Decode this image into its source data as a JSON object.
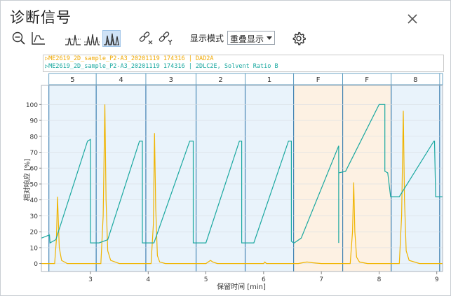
{
  "dialog": {
    "title": "诊断信号"
  },
  "toolbar": {
    "display_mode_label": "显示模式",
    "display_mode_value": "重叠显示"
  },
  "legend": {
    "entries": [
      {
        "text": "▷ME2619_2D_sample_P2-A3_20201119 174316 | DAD2A",
        "color": "#f0a800"
      },
      {
        "text": "▷ME2619_2D_sample_P2-A3_20201119 174316 | 2DLC2E, Solvent Ratio B",
        "color": "#1aa8a0"
      }
    ]
  },
  "chart_data": {
    "type": "line",
    "xlabel": "保留时间 [min]",
    "ylabel": "相对响应 [%]",
    "xlim": [
      2.15,
      9.1
    ],
    "ylim": [
      -5,
      112
    ],
    "x_ticks": [
      3,
      4,
      5,
      6,
      7,
      8,
      9
    ],
    "y_ticks": [
      0,
      10,
      20,
      30,
      40,
      50,
      60,
      70,
      80,
      90,
      100
    ],
    "fractions": [
      {
        "label": "5",
        "start": 2.28,
        "end": 3.1,
        "shade": "blue"
      },
      {
        "label": "4",
        "start": 3.1,
        "end": 3.96,
        "shade": "blue"
      },
      {
        "label": "3",
        "start": 3.96,
        "end": 4.83,
        "shade": "blue"
      },
      {
        "label": "2",
        "start": 4.83,
        "end": 5.68,
        "shade": "blue"
      },
      {
        "label": "1",
        "start": 5.68,
        "end": 6.52,
        "shade": "blue"
      },
      {
        "label": "F",
        "start": 6.52,
        "end": 7.37,
        "shade": "orange"
      },
      {
        "label": "F",
        "start": 7.37,
        "end": 8.21,
        "shade": "orange"
      },
      {
        "label": "8",
        "start": 8.21,
        "end": 9.05,
        "shade": "blue"
      },
      {
        "label": "",
        "start": 9.05,
        "end": 9.1,
        "shade": "blue"
      }
    ],
    "series": [
      {
        "color": "#f0b400",
        "x": [
          2.15,
          2.38,
          2.41,
          2.43,
          2.46,
          2.5,
          2.6,
          3.18,
          3.22,
          3.25,
          3.27,
          3.3,
          3.35,
          3.5,
          4.05,
          4.09,
          4.11,
          4.13,
          4.16,
          4.2,
          4.3,
          5.0,
          5.08,
          5.12,
          5.2,
          6.0,
          6.02,
          6.05,
          6.6,
          6.75,
          6.85,
          7.0,
          7.5,
          7.54,
          7.56,
          7.58,
          7.61,
          7.66,
          7.8,
          8.35,
          8.39,
          8.42,
          8.44,
          8.47,
          8.52,
          8.7,
          9.1
        ],
        "values": [
          0,
          0,
          15,
          42,
          10,
          2,
          0,
          0,
          30,
          100,
          40,
          8,
          2,
          0,
          0,
          25,
          82,
          35,
          5,
          1,
          0,
          0,
          2,
          1,
          0,
          0,
          1,
          0,
          0,
          1,
          0.5,
          0,
          0,
          20,
          51,
          20,
          4,
          1,
          0,
          0,
          30,
          96,
          40,
          8,
          2,
          0,
          0
        ]
      },
      {
        "color": "#1aa8a0",
        "x": [
          2.15,
          2.29,
          2.3,
          2.4,
          2.95,
          3.0,
          3.0,
          3.14,
          3.15,
          3.3,
          3.85,
          3.9,
          3.9,
          4.01,
          4.02,
          4.1,
          4.72,
          4.78,
          4.78,
          4.88,
          4.89,
          5.0,
          5.58,
          5.62,
          5.62,
          5.72,
          5.73,
          5.83,
          6.43,
          6.48,
          6.48,
          6.52,
          6.53,
          6.65,
          7.3,
          7.3,
          7.3,
          7.3,
          7.42,
          8.0,
          8.1,
          8.1,
          8.15,
          8.2,
          8.35,
          8.95,
          8.96,
          8.98,
          9.1
        ],
        "values": [
          16,
          18,
          13,
          15,
          77,
          78,
          13,
          13,
          13,
          15,
          77,
          77,
          13,
          13,
          13,
          13,
          77,
          77,
          13,
          13,
          13,
          13,
          77,
          77,
          13,
          13,
          13,
          13,
          77,
          77,
          14,
          13,
          13,
          16,
          74,
          13,
          57,
          57,
          58,
          100,
          100,
          58,
          57,
          42,
          42,
          77,
          77,
          42,
          42
        ]
      }
    ]
  }
}
